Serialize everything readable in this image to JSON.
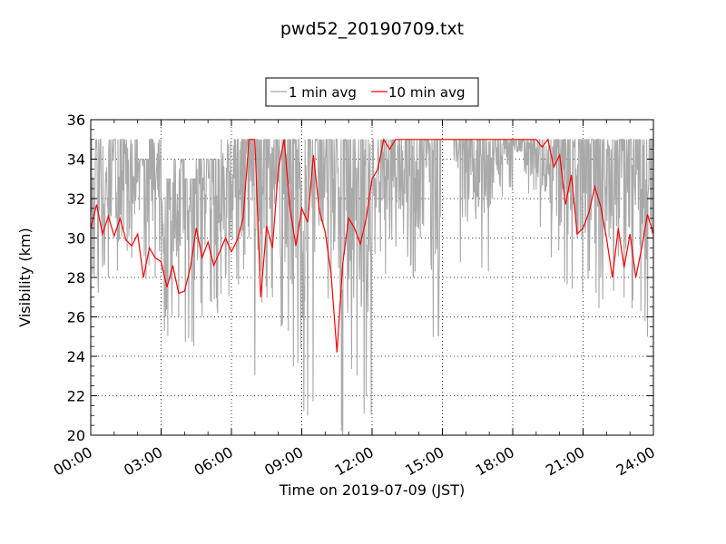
{
  "chart_data": {
    "type": "line",
    "title": "pwd52_20190709.txt",
    "xlabel": "Time on 2019-07-09 (JST)",
    "ylabel": "Visibility (km)",
    "xlim": [
      "00:00",
      "24:00"
    ],
    "ylim": [
      20,
      36
    ],
    "xticks": [
      "00:00",
      "03:00",
      "06:00",
      "09:00",
      "12:00",
      "15:00",
      "18:00",
      "21:00",
      "24:00"
    ],
    "yticks": [
      20,
      22,
      24,
      26,
      28,
      30,
      32,
      34,
      36
    ],
    "grid": true,
    "legend_position": "top-center",
    "series": [
      {
        "name": "1 min avg",
        "color": "#a9a9a9",
        "x": [
          "00:00",
          "00:30",
          "01:00",
          "01:30",
          "02:00",
          "02:30",
          "03:00",
          "03:30",
          "04:00",
          "04:30",
          "05:00",
          "05:30",
          "06:00",
          "06:30",
          "07:00",
          "07:30",
          "08:00",
          "08:30",
          "09:00",
          "09:30",
          "10:00",
          "10:30",
          "11:00",
          "11:30",
          "12:00",
          "12:30",
          "13:00",
          "13:30",
          "14:00",
          "14:30",
          "15:00",
          "15:30",
          "16:00",
          "16:30",
          "17:00",
          "17:30",
          "18:00",
          "18:30",
          "19:00",
          "19:30",
          "20:00",
          "20:30",
          "21:00",
          "21:30",
          "22:00",
          "22:30",
          "23:00",
          "23:30",
          "24:00"
        ],
        "y": [
          35,
          27,
          35,
          29,
          35,
          28,
          33,
          26,
          34,
          24,
          34,
          28,
          35,
          30,
          35,
          27,
          35,
          29,
          21,
          35,
          28,
          20,
          35,
          22,
          35,
          30,
          35,
          24,
          35,
          35,
          35,
          35,
          35,
          35,
          35,
          35,
          35,
          35,
          35,
          35,
          35,
          30,
          35,
          28,
          35,
          27,
          35,
          25,
          35
        ],
        "y_range_per_interval": [
          [
            27,
            35
          ],
          [
            28,
            35
          ],
          [
            27,
            35
          ],
          [
            29,
            35
          ],
          [
            24,
            34
          ],
          [
            28,
            35
          ],
          [
            25,
            33
          ],
          [
            26,
            34
          ],
          [
            24,
            33
          ],
          [
            26,
            34
          ],
          [
            26,
            34
          ],
          [
            27,
            35
          ],
          [
            27,
            35
          ],
          [
            22,
            35
          ],
          [
            22,
            35
          ],
          [
            26,
            35
          ],
          [
            25,
            35
          ],
          [
            23,
            35
          ],
          [
            21,
            35
          ],
          [
            28,
            35
          ],
          [
            26,
            35
          ],
          [
            20,
            35
          ],
          [
            22,
            35
          ],
          [
            21,
            35
          ],
          [
            29,
            35
          ],
          [
            27,
            35
          ],
          [
            29,
            35
          ],
          [
            28,
            35
          ],
          [
            30,
            35
          ],
          [
            24,
            35
          ],
          [
            35,
            35
          ],
          [
            28,
            35
          ],
          [
            30,
            35
          ],
          [
            28,
            35
          ],
          [
            31,
            35
          ],
          [
            31,
            35
          ],
          [
            34,
            35
          ],
          [
            32,
            35
          ],
          [
            30,
            35
          ],
          [
            28,
            35
          ],
          [
            27,
            35
          ],
          [
            27,
            35
          ],
          [
            27,
            35
          ],
          [
            26,
            35
          ],
          [
            27,
            35
          ],
          [
            25,
            35
          ],
          [
            26,
            35
          ],
          [
            25,
            35
          ],
          [
            26,
            35
          ]
        ]
      },
      {
        "name": "10 min avg",
        "color": "#ff0000",
        "x": [
          "00:00",
          "00:15",
          "00:30",
          "00:45",
          "01:00",
          "01:15",
          "01:30",
          "01:45",
          "02:00",
          "02:15",
          "02:30",
          "02:45",
          "03:00",
          "03:15",
          "03:30",
          "03:45",
          "04:00",
          "04:15",
          "04:30",
          "04:45",
          "05:00",
          "05:15",
          "05:30",
          "05:45",
          "06:00",
          "06:15",
          "06:30",
          "06:45",
          "07:00",
          "07:15",
          "07:30",
          "07:45",
          "08:00",
          "08:15",
          "08:30",
          "08:45",
          "09:00",
          "09:15",
          "09:30",
          "09:45",
          "10:00",
          "10:15",
          "10:30",
          "10:45",
          "11:00",
          "11:15",
          "11:30",
          "11:45",
          "12:00",
          "12:15",
          "12:30",
          "12:45",
          "13:00",
          "13:30",
          "14:00",
          "14:30",
          "15:00",
          "15:30",
          "16:00",
          "16:30",
          "17:00",
          "17:30",
          "18:00",
          "18:30",
          "19:00",
          "19:15",
          "19:30",
          "19:45",
          "20:00",
          "20:15",
          "20:30",
          "20:45",
          "21:00",
          "21:15",
          "21:30",
          "21:45",
          "22:00",
          "22:15",
          "22:30",
          "22:45",
          "23:00",
          "23:15",
          "23:30",
          "23:45",
          "24:00"
        ],
        "y": [
          30.5,
          31.7,
          30.2,
          31.1,
          30.1,
          31.0,
          29.9,
          29.6,
          30.2,
          28.0,
          29.5,
          29.0,
          28.8,
          27.5,
          28.6,
          27.2,
          27.3,
          28.5,
          30.5,
          29.0,
          29.8,
          28.6,
          29.3,
          30.0,
          29.3,
          29.9,
          31.0,
          35.0,
          35.0,
          27.0,
          30.6,
          29.5,
          33.5,
          35.0,
          31.5,
          29.6,
          31.5,
          30.8,
          34.2,
          31.4,
          30.3,
          28.2,
          24.2,
          28.7,
          31.0,
          30.5,
          29.7,
          31.0,
          33.0,
          33.5,
          35.0,
          34.5,
          35.0,
          35.0,
          35.0,
          35.0,
          35.0,
          35.0,
          35.0,
          35.0,
          35.0,
          35.0,
          35.0,
          35.0,
          35.0,
          34.6,
          35.0,
          33.6,
          34.2,
          31.7,
          33.2,
          30.2,
          30.5,
          31.3,
          32.6,
          31.6,
          30.0,
          28.0,
          30.5,
          28.5,
          30.2,
          28.0,
          29.5,
          31.2,
          30.2
        ]
      }
    ]
  }
}
